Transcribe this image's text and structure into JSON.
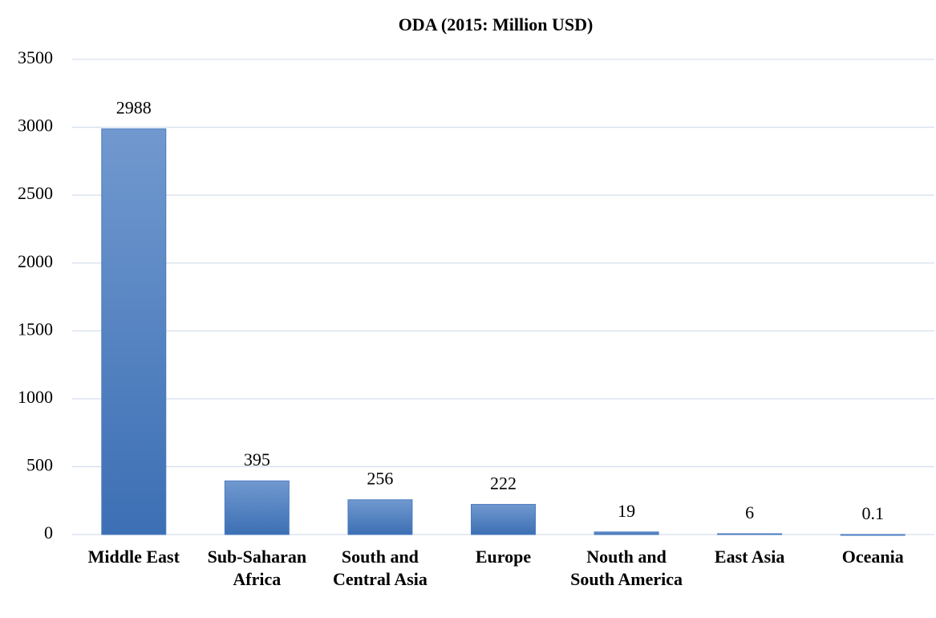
{
  "chart_data": {
    "type": "bar",
    "title": "ODA (2015: Million USD)",
    "categories": [
      "Middle East",
      "Sub-Saharan Africa",
      "South and Central Asia",
      "Europe",
      "Nouth and South America",
      "East Asia",
      "Oceania"
    ],
    "values": [
      2988,
      395,
      256,
      222,
      19,
      6,
      0.1
    ],
    "color": "#4a7cc0",
    "ylim": [
      0,
      3500
    ],
    "yticks": [
      0,
      500,
      1000,
      1500,
      2000,
      2500,
      3000,
      3500
    ],
    "grid": true
  }
}
